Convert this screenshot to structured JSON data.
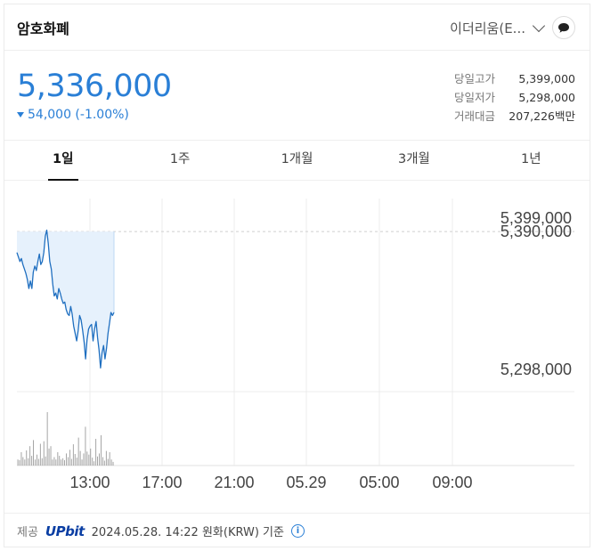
{
  "header": {
    "title": "암호화폐",
    "coin_select": "이더리움(E..."
  },
  "price": {
    "current": "5,336,000",
    "change": "54,000 (-1.00%)"
  },
  "stats": [
    {
      "label": "당일고가",
      "value": "5,399,000"
    },
    {
      "label": "당일저가",
      "value": "5,298,000"
    },
    {
      "label": "거래대금",
      "value": "207,226백만"
    }
  ],
  "tabs": [
    "1일",
    "1주",
    "1개월",
    "3개월",
    "1년"
  ],
  "colors": {
    "accent": "#2a7fd6",
    "line": "#1f6fc0",
    "fill": "#e6f1fc"
  },
  "chart_data": {
    "type": "line",
    "x_ticks": [
      "13:00",
      "17:00",
      "21:00",
      "05.29",
      "05:00",
      "09:00"
    ],
    "y_ticks": [
      "5,399,000",
      "5,390,000",
      "5,298,000"
    ],
    "reference_value": 5390000,
    "ylim": [
      5298000,
      5399000
    ],
    "series": [
      {
        "values": [
          5376000,
          5373000,
          5370000,
          5372000,
          5368000,
          5365000,
          5362000,
          5358000,
          5352000,
          5357000,
          5352000,
          5363000,
          5367000,
          5364000,
          5370000,
          5375000,
          5368000,
          5370000,
          5376000,
          5387000,
          5391000,
          5382000,
          5370000,
          5365000,
          5355000,
          5347000,
          5349000,
          5345000,
          5352000,
          5349000,
          5345000,
          5342000,
          5343000,
          5338000,
          5335000,
          5334000,
          5340000,
          5335000,
          5327000,
          5322000,
          5317000,
          5324000,
          5334000,
          5331000,
          5324000,
          5316000,
          5305000,
          5318000,
          5325000,
          5327000,
          5328000,
          5317000,
          5325000,
          5330000,
          5319000,
          5311000,
          5299000,
          5309000,
          5314000,
          5305000,
          5312000,
          5322000,
          5329000,
          5336000,
          5334000,
          5336000
        ]
      }
    ],
    "volume": [
      1.0,
      0.9,
      2.2,
      1.4,
      1.0,
      2.5,
      1.2,
      3.2,
      1.6,
      4.2,
      1.0,
      1.8,
      1.1,
      3.6,
      1.2,
      4.0,
      1.5,
      8.8,
      2.8,
      3.2,
      1.0,
      1.4,
      1.0,
      2.2,
      1.6,
      1.0,
      1.2,
      0.9,
      2.0,
      1.4,
      2.6,
      1.1,
      3.5,
      1.9,
      1.3,
      4.6,
      2.4,
      1.0,
      2.0,
      6.4,
      2.3,
      1.8,
      2.8,
      1.3,
      0.7,
      4.4,
      1.5,
      2.0,
      5.0,
      1.4,
      0.8,
      2.4,
      1.1,
      2.2,
      1.0,
      0.6
    ]
  },
  "footer": {
    "provider_label": "제공",
    "provider": "UPbit",
    "timestamp": "2024.05.28. 14:22 원화(KRW) 기준"
  }
}
